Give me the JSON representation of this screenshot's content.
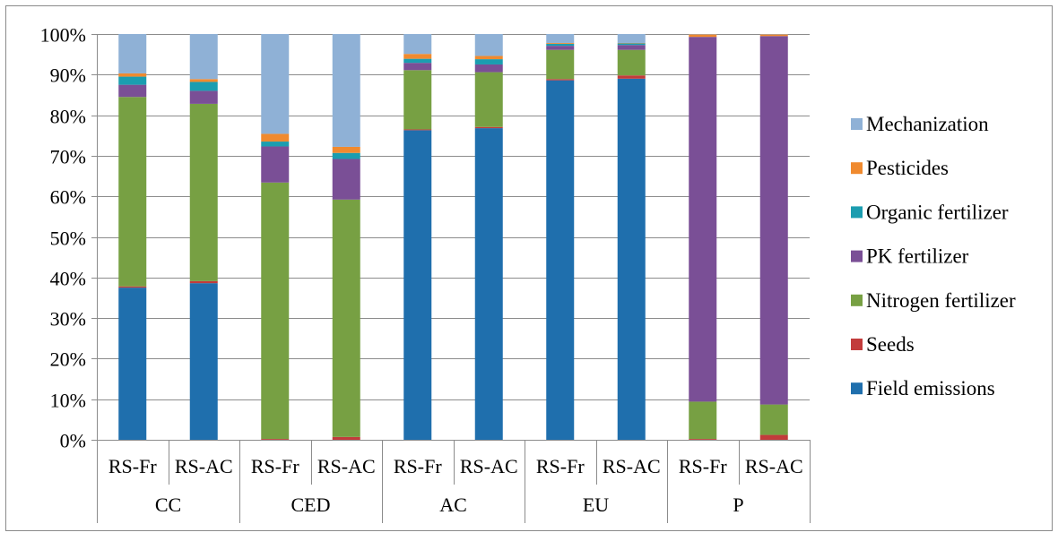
{
  "chart_data": {
    "type": "bar",
    "stacked": "percent",
    "title": "",
    "xlabel": "",
    "ylabel": "",
    "ylim": [
      0,
      100
    ],
    "yticks": [
      "0%",
      "10%",
      "20%",
      "30%",
      "40%",
      "50%",
      "60%",
      "70%",
      "80%",
      "90%",
      "100%"
    ],
    "grid": true,
    "legend_position": "right",
    "group_labels": [
      "CC",
      "CED",
      "AC",
      "EU",
      "P"
    ],
    "categories": [
      "RS-Fr",
      "RS-AC",
      "RS-Fr",
      "RS-AC",
      "RS-Fr",
      "RS-AC",
      "RS-Fr",
      "RS-AC",
      "RS-Fr",
      "RS-AC"
    ],
    "series": [
      {
        "name": "Field emissions",
        "color": "#1f6fad",
        "values": [
          37.5,
          38.6,
          0,
          0,
          76.3,
          76.8,
          88.6,
          89.0,
          0,
          0
        ]
      },
      {
        "name": "Seeds",
        "color": "#c23b3b",
        "values": [
          0.3,
          0.5,
          0.2,
          0.7,
          0.2,
          0.3,
          0.3,
          0.8,
          0.2,
          1.2
        ]
      },
      {
        "name": "Nitrogen fertilizer",
        "color": "#77a043",
        "values": [
          46.7,
          43.7,
          63.2,
          58.5,
          14.6,
          13.5,
          7.2,
          6.3,
          9.2,
          7.5
        ]
      },
      {
        "name": "PK fertilizer",
        "color": "#7a4f96",
        "values": [
          3.0,
          3.2,
          8.9,
          10.0,
          1.8,
          1.9,
          1.0,
          1.2,
          89.9,
          90.8
        ]
      },
      {
        "name": "Organic fertilizer",
        "color": "#1b9db0",
        "values": [
          2.0,
          2.2,
          1.2,
          1.5,
          1.0,
          1.3,
          0.5,
          0.4,
          0,
          0
        ]
      },
      {
        "name": "Pesticides",
        "color": "#f08a2f",
        "values": [
          0.8,
          0.7,
          1.9,
          1.5,
          1.2,
          0.8,
          0.2,
          0.1,
          0.6,
          0.4
        ]
      },
      {
        "name": "Mechanization",
        "color": "#8fb1d6",
        "values": [
          9.7,
          11.1,
          24.6,
          27.8,
          4.9,
          5.4,
          2.2,
          2.2,
          0.1,
          0.1
        ]
      }
    ]
  }
}
